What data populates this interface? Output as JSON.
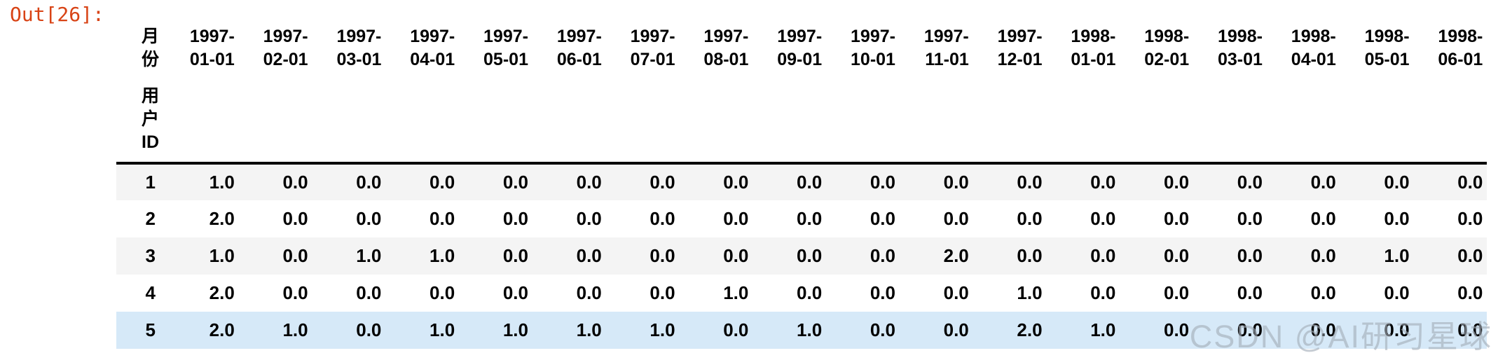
{
  "output_prompt": "Out[26]:",
  "watermark_text": "CSDN @AI研习星球",
  "colors": {
    "out_prompt": "#d84315",
    "row_stripe": "#f4f4f4",
    "row_highlight": "#d6e9f8",
    "header_border": "#000000",
    "watermark": "#a3adb8"
  },
  "table": {
    "columns_axis_name": "月份",
    "index_axis_name": "用户ID",
    "columns": [
      "1997-01-01",
      "1997-02-01",
      "1997-03-01",
      "1997-04-01",
      "1997-05-01",
      "1997-06-01",
      "1997-07-01",
      "1997-08-01",
      "1997-09-01",
      "1997-10-01",
      "1997-11-01",
      "1997-12-01",
      "1998-01-01",
      "1998-02-01",
      "1998-03-01",
      "1998-04-01",
      "1998-05-01",
      "1998-06-01"
    ],
    "rows": [
      {
        "index": "1",
        "highlighted": false,
        "values": [
          "1.0",
          "0.0",
          "0.0",
          "0.0",
          "0.0",
          "0.0",
          "0.0",
          "0.0",
          "0.0",
          "0.0",
          "0.0",
          "0.0",
          "0.0",
          "0.0",
          "0.0",
          "0.0",
          "0.0",
          "0.0"
        ]
      },
      {
        "index": "2",
        "highlighted": false,
        "values": [
          "2.0",
          "0.0",
          "0.0",
          "0.0",
          "0.0",
          "0.0",
          "0.0",
          "0.0",
          "0.0",
          "0.0",
          "0.0",
          "0.0",
          "0.0",
          "0.0",
          "0.0",
          "0.0",
          "0.0",
          "0.0"
        ]
      },
      {
        "index": "3",
        "highlighted": false,
        "values": [
          "1.0",
          "0.0",
          "1.0",
          "1.0",
          "0.0",
          "0.0",
          "0.0",
          "0.0",
          "0.0",
          "0.0",
          "2.0",
          "0.0",
          "0.0",
          "0.0",
          "0.0",
          "0.0",
          "1.0",
          "0.0"
        ]
      },
      {
        "index": "4",
        "highlighted": false,
        "values": [
          "2.0",
          "0.0",
          "0.0",
          "0.0",
          "0.0",
          "0.0",
          "0.0",
          "1.0",
          "0.0",
          "0.0",
          "0.0",
          "1.0",
          "0.0",
          "0.0",
          "0.0",
          "0.0",
          "0.0",
          "0.0"
        ]
      },
      {
        "index": "5",
        "highlighted": true,
        "values": [
          "2.0",
          "1.0",
          "0.0",
          "1.0",
          "1.0",
          "1.0",
          "1.0",
          "0.0",
          "1.0",
          "0.0",
          "0.0",
          "2.0",
          "1.0",
          "0.0",
          "0.0",
          "0.0",
          "0.0",
          "0.0"
        ]
      }
    ]
  }
}
